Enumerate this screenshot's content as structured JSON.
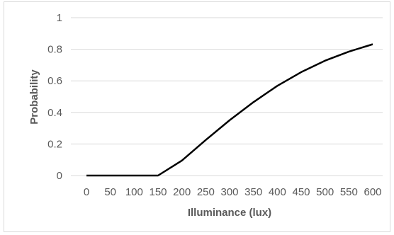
{
  "chart_data": {
    "type": "line",
    "title": "",
    "xlabel": "Illuminance (lux)",
    "ylabel": "Probability",
    "x": [
      0,
      50,
      100,
      150,
      200,
      250,
      300,
      350,
      400,
      450,
      500,
      550,
      600
    ],
    "x_tick_labels": [
      "0",
      "50",
      "100",
      "150",
      "200",
      "250",
      "300",
      "350",
      "400",
      "450",
      "500",
      "550",
      "600"
    ],
    "y_tick_labels": [
      "0",
      "0.2",
      "0.4",
      "0.6",
      "0.8",
      "1"
    ],
    "y_ticks": [
      0,
      0.2,
      0.4,
      0.6,
      0.8,
      1
    ],
    "ylim": [
      0,
      1
    ],
    "grid": true,
    "legend": "none",
    "series": [
      {
        "values": [
          0,
          0,
          0,
          0,
          0.095,
          0.225,
          0.35,
          0.465,
          0.568,
          0.655,
          0.728,
          0.785,
          0.832
        ]
      }
    ],
    "colors": {
      "line": "#000000",
      "grid": "#d9d9d9",
      "text": "#595959"
    }
  }
}
